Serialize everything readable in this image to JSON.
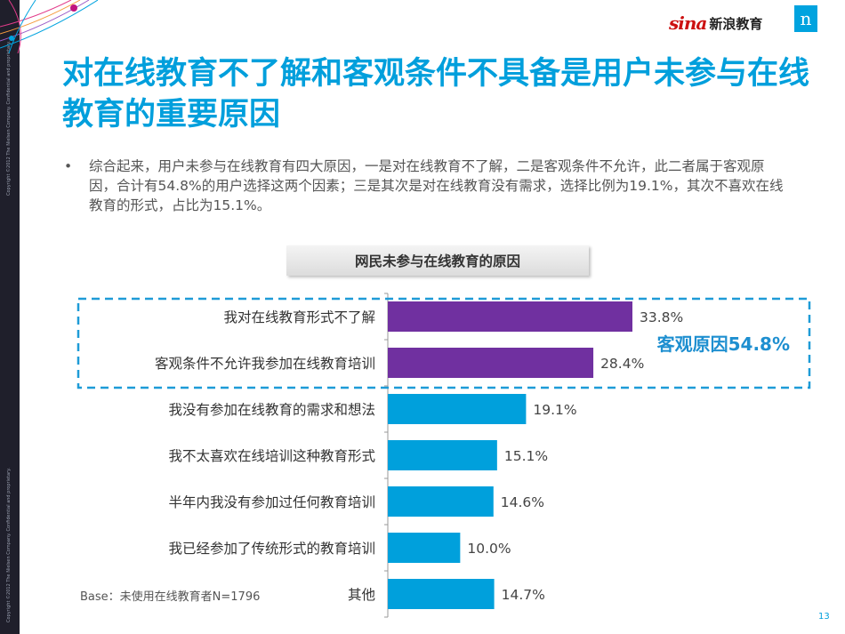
{
  "logo": {
    "sina_word": "sina",
    "sina_cn": "新浪教育",
    "n_mark": "n"
  },
  "copyright": {
    "text1": "Copyright ©2012 The Nielsen Company. Confidential and proprietary.",
    "text2": "Copyright ©2012 The Nielsen Company. Confidential and proprietary."
  },
  "title": "对在线教育不了解和客观条件不具备是用户未参与在线教育的重要原因",
  "bullet": "综合起来，用户未参与在线教育有四大原因，一是对在线教育不了解，二是客观条件不允许，此二者属于客观原因，合计有54.8%的用户选择这两个因素；三是其次是对在线教育没有需求，选择比例为19.1%，其次不喜欢在线教育的形式，占比为15.1%。",
  "chart_data": {
    "type": "bar",
    "orientation": "horizontal",
    "title": "网民未参与在线教育的原因",
    "categories": [
      "我对在线教育形式不了解",
      "客观条件不允许我参加在线教育培训",
      "我没有参加在线教育的需求和想法",
      "我不太喜欢在线培训这种教育形式",
      "半年内我没有参加过任何教育培训",
      "我已经参加了传统形式的教育培训",
      "其他"
    ],
    "values": [
      33.8,
      28.4,
      19.1,
      15.1,
      14.6,
      10.0,
      14.7
    ],
    "value_labels": [
      "33.8%",
      "28.4%",
      "19.1%",
      "15.1%",
      "14.6%",
      "10.0%",
      "14.7%"
    ],
    "bar_colors": [
      "#7030a0",
      "#7030a0",
      "#00a0dc",
      "#00a0dc",
      "#00a0dc",
      "#00a0dc",
      "#00a0dc"
    ],
    "xlim": [
      0,
      40
    ],
    "grid": false,
    "annotation": {
      "text": "客观原因54.8%",
      "applies_to_first": 2,
      "color": "#1e8fd0"
    }
  },
  "base_note": "Base：未使用在线教育者N=1796",
  "page_number": "13"
}
